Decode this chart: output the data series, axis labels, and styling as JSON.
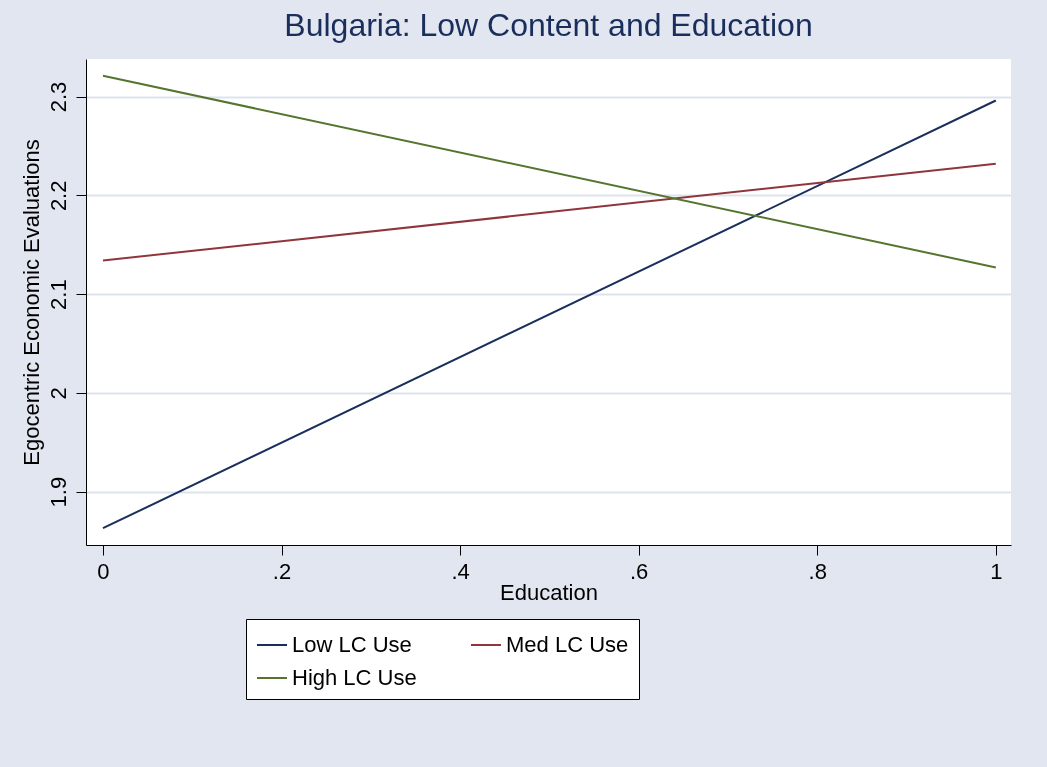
{
  "chart_data": {
    "type": "line",
    "title": "Bulgaria: Low Content and Education",
    "xlabel": "Education",
    "ylabel": "Egocentric Economic Evaluations",
    "x": [
      0,
      1
    ],
    "series": [
      {
        "name": "Low LC Use",
        "color": "#1a2e5c",
        "values": [
          1.863,
          2.296
        ]
      },
      {
        "name": "Med LC Use",
        "color": "#90353b",
        "values": [
          2.134,
          2.232
        ]
      },
      {
        "name": "High LC Use",
        "color": "#55752f",
        "values": [
          2.321,
          2.127
        ]
      }
    ],
    "xlim": [
      -0.019,
      1.017
    ],
    "xticks": [
      0,
      {
        "value": 0.2,
        "label": ".2"
      },
      {
        "value": 0.4,
        "label": ".4"
      },
      {
        "value": 0.6,
        "label": ".6"
      },
      {
        "value": 0.8,
        "label": ".8"
      },
      1
    ],
    "ylim": [
      1.846,
      2.338
    ],
    "yticks": [
      1.9,
      2,
      2.1,
      2.2,
      2.3
    ],
    "grid": "y",
    "legend": "bottom",
    "marker": "none",
    "line_style": "solid"
  }
}
